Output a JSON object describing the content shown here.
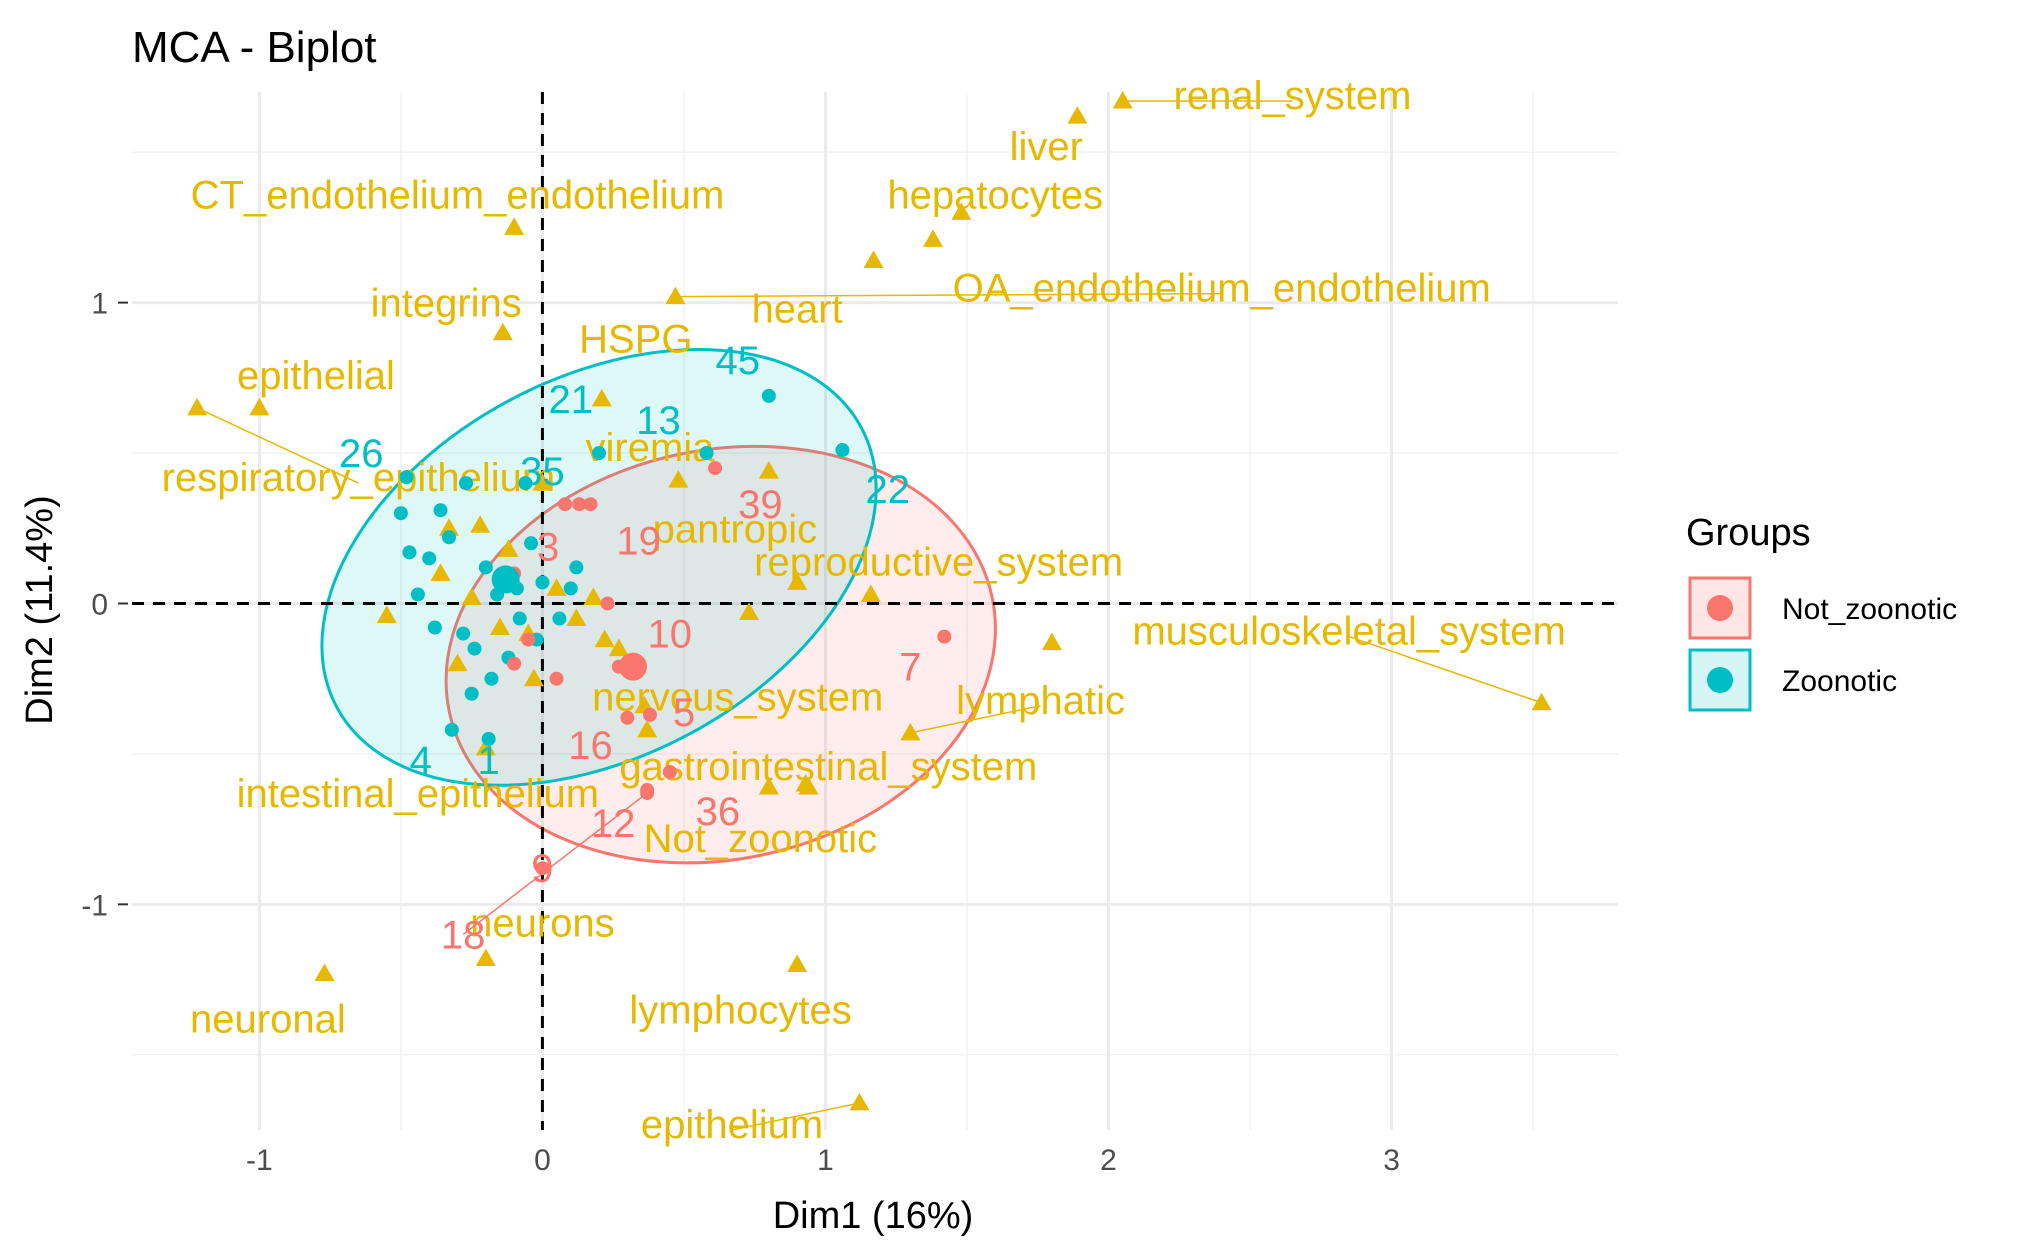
{
  "chart_data": {
    "type": "scatter",
    "title": "MCA - Biplot",
    "xlabel": "Dim1 (16%)",
    "ylabel": "Dim2 (11.4%)",
    "xlim": [
      -1.45,
      3.8
    ],
    "ylim": [
      -1.75,
      1.7
    ],
    "xticks": [
      -1,
      0,
      1,
      2,
      3
    ],
    "yticks": [
      -1,
      0,
      1
    ],
    "xtick_labels": [
      "-1",
      "0",
      "1",
      "2",
      "3"
    ],
    "ytick_labels": [
      "-1",
      "0",
      "1"
    ],
    "grid": true,
    "reference_lines": "dashed lines at x=0 and y=0",
    "legend": {
      "title": "Groups",
      "position": "right",
      "items": [
        {
          "label": "Not_zoonotic",
          "color": "#F8766D"
        },
        {
          "label": "Zoonotic",
          "color": "#00BFC4"
        }
      ]
    },
    "colors": {
      "variables": "#E7B800",
      "not_zoonotic": "#F8766D",
      "zoonotic": "#00BFC4"
    },
    "variable_points": [
      {
        "name": "renal_system",
        "x": 2.05,
        "y": 1.67,
        "lx": 2.65,
        "ly": 1.69
      },
      {
        "name": "liver",
        "x": 1.89,
        "y": 1.62,
        "lx": 1.78,
        "ly": 1.52
      },
      {
        "name": "hepatocytes",
        "x": 1.48,
        "y": 1.3,
        "lx": 1.6,
        "ly": 1.36
      },
      {
        "name": "",
        "x": 1.38,
        "y": 1.21
      },
      {
        "name": "heart",
        "x": 1.17,
        "y": 1.14,
        "lx": 0.9,
        "ly": 0.98
      },
      {
        "name": "OA_endothelium_endothelium",
        "x": 0.47,
        "y": 1.02,
        "lx": 2.4,
        "ly": 1.05
      },
      {
        "name": "CT_endothelium_endothelium",
        "x": -0.1,
        "y": 1.25,
        "lx": -0.3,
        "ly": 1.36
      },
      {
        "name": "integrins",
        "x": -0.14,
        "y": 0.9,
        "lx": -0.34,
        "ly": 1.0
      },
      {
        "name": "HSPG",
        "x": 0.21,
        "y": 0.68,
        "lx": 0.33,
        "ly": 0.88
      },
      {
        "name": "epithelial",
        "x": -1.0,
        "y": 0.65,
        "lx": -0.8,
        "ly": 0.76
      },
      {
        "name": "respiratory_epithelium",
        "x": -1.22,
        "y": 0.65,
        "lx": -0.65,
        "ly": 0.42
      },
      {
        "name": "viremia",
        "x": 0.48,
        "y": 0.41,
        "lx": 0.38,
        "ly": 0.52
      },
      {
        "name": "pantropic",
        "x": 0.8,
        "y": 0.44,
        "lx": 0.68,
        "ly": 0.25
      },
      {
        "name": "reproductive_system",
        "x": 1.16,
        "y": 0.03,
        "lx": 1.4,
        "ly": 0.14
      },
      {
        "name": "musculoskeletal_system",
        "x": 3.53,
        "y": -0.33,
        "lx": 2.85,
        "ly": -0.09
      },
      {
        "name": "",
        "x": 1.8,
        "y": -0.13
      },
      {
        "name": "lymphatic",
        "x": 1.3,
        "y": -0.43,
        "lx": 1.76,
        "ly": -0.32
      },
      {
        "name": "nervous_system",
        "x": 0.36,
        "y": -0.34,
        "lx": 0.69,
        "ly": -0.31
      },
      {
        "name": "gastrointestinal_system",
        "x": 0.93,
        "y": -0.6,
        "lx": 1.01,
        "ly": -0.54
      },
      {
        "name": "",
        "x": 0.8,
        "y": -0.61
      },
      {
        "name": "",
        "x": 0.37,
        "y": -0.42
      },
      {
        "name": "intestinal_epithelium",
        "x": -0.2,
        "y": -0.48,
        "lx": -0.44,
        "ly": -0.63
      },
      {
        "name": "Not_zoonotic",
        "x": 0.94,
        "y": -0.61,
        "lx": 0.77,
        "ly": -0.78
      },
      {
        "name": "neurons",
        "x": -0.2,
        "y": -1.18,
        "lx": 0.0,
        "ly": -1.06
      },
      {
        "name": "neuronal",
        "x": -0.77,
        "y": -1.23,
        "lx": -0.97,
        "ly": -1.38
      },
      {
        "name": "lymphocytes",
        "x": 0.9,
        "y": -1.2,
        "lx": 0.7,
        "ly": -1.35
      },
      {
        "name": "epithelium",
        "x": 1.12,
        "y": -1.66,
        "lx": 0.67,
        "ly": -1.73
      },
      {
        "name": "",
        "x": -0.55,
        "y": -0.04
      },
      {
        "name": "",
        "x": -0.33,
        "y": 0.25
      },
      {
        "name": "",
        "x": -0.36,
        "y": 0.1
      },
      {
        "name": "",
        "x": -0.22,
        "y": 0.26
      },
      {
        "name": "",
        "x": -0.25,
        "y": 0.02
      },
      {
        "name": "",
        "x": -0.15,
        "y": -0.08
      },
      {
        "name": "",
        "x": -0.05,
        "y": -0.1
      },
      {
        "name": "",
        "x": 0.05,
        "y": 0.05
      },
      {
        "name": "",
        "x": 0.12,
        "y": -0.05
      },
      {
        "name": "",
        "x": 0.22,
        "y": -0.12
      },
      {
        "name": "",
        "x": 0.27,
        "y": -0.15
      },
      {
        "name": "",
        "x": 0.73,
        "y": -0.03
      },
      {
        "name": "",
        "x": 0.9,
        "y": 0.07
      },
      {
        "name": "",
        "x": -0.12,
        "y": 0.18
      },
      {
        "name": "",
        "x": -0.03,
        "y": -0.25
      },
      {
        "name": "",
        "x": 0.18,
        "y": 0.02
      },
      {
        "name": "",
        "x": -0.3,
        "y": -0.2
      },
      {
        "name": "",
        "x": 0.0,
        "y": 0.4
      }
    ],
    "individuals": [
      {
        "name": "45",
        "group": "Zoonotic",
        "x": 0.8,
        "y": 0.69,
        "lx": 0.69,
        "ly": 0.81
      },
      {
        "name": "22",
        "group": "Zoonotic",
        "x": 1.06,
        "y": 0.51,
        "lx": 1.22,
        "ly": 0.38
      },
      {
        "name": "21",
        "group": "Zoonotic",
        "x": 0.2,
        "y": 0.5,
        "lx": 0.1,
        "ly": 0.68
      },
      {
        "name": "13",
        "group": "Zoonotic",
        "x": 0.58,
        "y": 0.5,
        "lx": 0.41,
        "ly": 0.61
      },
      {
        "name": "26",
        "group": "Zoonotic",
        "x": -0.48,
        "y": 0.42,
        "lx": -0.64,
        "ly": 0.5
      },
      {
        "name": "35",
        "group": "Zoonotic",
        "x": -0.06,
        "y": 0.4,
        "lx": 0.0,
        "ly": 0.44
      },
      {
        "name": "4",
        "group": "Zoonotic",
        "x": -0.32,
        "y": -0.42,
        "lx": -0.43,
        "ly": -0.52
      },
      {
        "name": "1",
        "group": "Zoonotic",
        "x": -0.19,
        "y": -0.45,
        "lx": -0.19,
        "ly": -0.52
      },
      {
        "name": "",
        "group": "Zoonotic",
        "x": -0.5,
        "y": 0.3
      },
      {
        "name": "",
        "group": "Zoonotic",
        "x": -0.4,
        "y": 0.15
      },
      {
        "name": "",
        "group": "Zoonotic",
        "x": -0.33,
        "y": 0.22
      },
      {
        "name": "",
        "group": "Zoonotic",
        "x": -0.27,
        "y": 0.4
      },
      {
        "name": "",
        "group": "Zoonotic",
        "x": -0.2,
        "y": 0.12
      },
      {
        "name": "",
        "group": "Zoonotic",
        "x": -0.16,
        "y": 0.03
      },
      {
        "name": "",
        "group": "Zoonotic",
        "x": -0.09,
        "y": 0.05
      },
      {
        "name": "",
        "group": "Zoonotic",
        "x": -0.04,
        "y": 0.2
      },
      {
        "name": "",
        "group": "Zoonotic",
        "x": 0.0,
        "y": 0.07
      },
      {
        "name": "",
        "group": "Zoonotic",
        "x": 0.06,
        "y": -0.05
      },
      {
        "name": "",
        "group": "Zoonotic",
        "x": -0.44,
        "y": 0.03
      },
      {
        "name": "",
        "group": "Zoonotic",
        "x": -0.38,
        "y": -0.08
      },
      {
        "name": "",
        "group": "Zoonotic",
        "x": -0.28,
        "y": -0.1
      },
      {
        "name": "",
        "group": "Zoonotic",
        "x": -0.25,
        "y": -0.3
      },
      {
        "name": "",
        "group": "Zoonotic",
        "x": -0.18,
        "y": -0.25
      },
      {
        "name": "",
        "group": "Zoonotic",
        "x": -0.12,
        "y": -0.18
      },
      {
        "name": "",
        "group": "Zoonotic",
        "x": -0.08,
        "y": -0.05
      },
      {
        "name": "",
        "group": "Zoonotic",
        "x": -0.02,
        "y": -0.12
      },
      {
        "name": "",
        "group": "Zoonotic",
        "x": 0.12,
        "y": 0.12
      },
      {
        "name": "",
        "group": "Zoonotic",
        "x": -0.36,
        "y": 0.31
      },
      {
        "name": "",
        "group": "Zoonotic",
        "x": -0.47,
        "y": 0.17
      },
      {
        "name": "",
        "group": "Zoonotic",
        "x": -0.24,
        "y": -0.15
      },
      {
        "name": "",
        "group": "Zoonotic",
        "x": 0.1,
        "y": 0.05
      },
      {
        "name": "39",
        "group": "Not_zoonotic",
        "x": 0.61,
        "y": 0.45,
        "lx": 0.77,
        "ly": 0.33
      },
      {
        "name": "19",
        "group": "Not_zoonotic",
        "x": 0.17,
        "y": 0.33,
        "lx": 0.34,
        "ly": 0.21
      },
      {
        "name": "3",
        "group": "Not_zoonotic",
        "x": 0.08,
        "y": 0.33,
        "lx": 0.02,
        "ly": 0.19
      },
      {
        "name": "10",
        "group": "Not_zoonotic",
        "x": 0.27,
        "y": -0.21,
        "lx": 0.45,
        "ly": -0.1
      },
      {
        "name": "7",
        "group": "Not_zoonotic",
        "x": 1.42,
        "y": -0.11,
        "lx": 1.3,
        "ly": -0.21
      },
      {
        "name": "5",
        "group": "Not_zoonotic",
        "x": 0.38,
        "y": -0.37,
        "lx": 0.5,
        "ly": -0.36
      },
      {
        "name": "16",
        "group": "Not_zoonotic",
        "x": 0.3,
        "y": -0.38,
        "lx": 0.17,
        "ly": -0.47
      },
      {
        "name": "12",
        "group": "Not_zoonotic",
        "x": 0.37,
        "y": -0.62,
        "lx": 0.25,
        "ly": -0.73
      },
      {
        "name": "36",
        "group": "Not_zoonotic",
        "x": 0.45,
        "y": -0.56,
        "lx": 0.62,
        "ly": -0.69
      },
      {
        "name": "9",
        "group": "Not_zoonotic",
        "x": 0.0,
        "y": -0.88,
        "lx": 0.0,
        "ly": -0.88
      },
      {
        "name": "18",
        "group": "Not_zoonotic",
        "x": 0.37,
        "y": -0.63,
        "lx": -0.28,
        "ly": -1.1
      },
      {
        "name": "",
        "group": "Not_zoonotic",
        "x": -0.1,
        "y": 0.1
      },
      {
        "name": "",
        "group": "Not_zoonotic",
        "x": -0.05,
        "y": -0.12
      },
      {
        "name": "",
        "group": "Not_zoonotic",
        "x": 0.05,
        "y": -0.25
      },
      {
        "name": "",
        "group": "Not_zoonotic",
        "x": 0.13,
        "y": 0.33
      },
      {
        "name": "",
        "group": "Not_zoonotic",
        "x": -0.1,
        "y": -0.2
      },
      {
        "name": "",
        "group": "Not_zoonotic",
        "x": 0.23,
        "y": 0.0
      }
    ],
    "group_means": [
      {
        "group": "Zoonotic",
        "x": -0.13,
        "y": 0.08
      },
      {
        "group": "Not_zoonotic",
        "x": 0.32,
        "y": -0.21
      }
    ],
    "ellipses": [
      {
        "group": "Zoonotic",
        "cx": 0.2,
        "cy": 0.12,
        "rx": 1.05,
        "ry": 0.63,
        "angle": 28
      },
      {
        "group": "Not_zoonotic",
        "cx": 0.63,
        "cy": -0.17,
        "rx": 0.98,
        "ry": 0.68,
        "angle": 12
      }
    ]
  }
}
